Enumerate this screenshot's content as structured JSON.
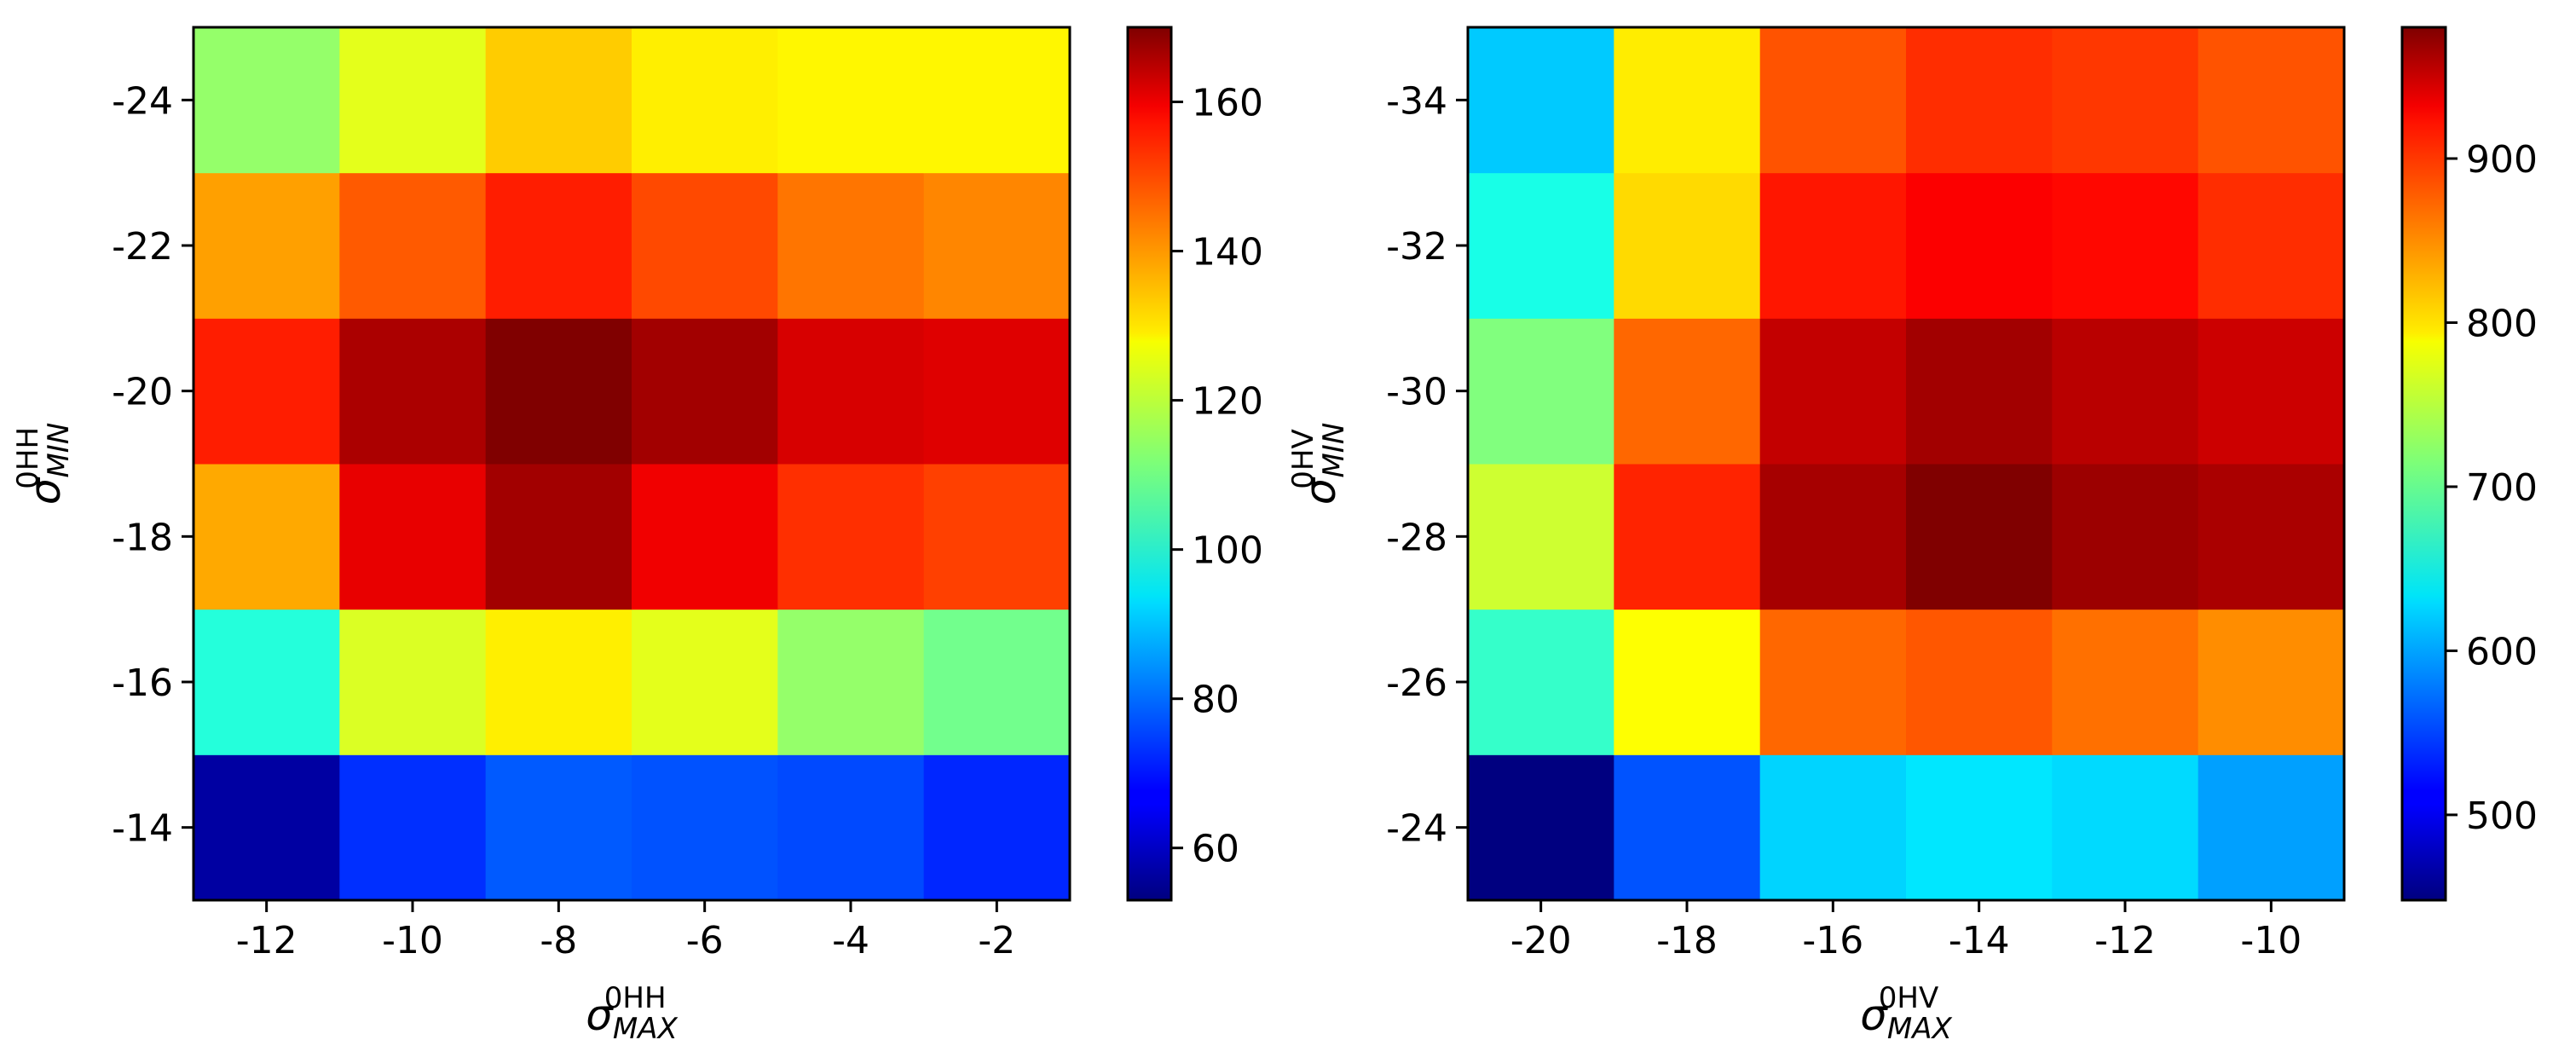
{
  "chart_data": [
    {
      "type": "heatmap",
      "x": [
        -12,
        -10,
        -8,
        -6,
        -4,
        -2
      ],
      "y": [
        -14,
        -16,
        -18,
        -20,
        -22,
        -24
      ],
      "z": [
        [
          57,
          73,
          78,
          77,
          76,
          72
        ],
        [
          101,
          122,
          128,
          123,
          114,
          110
        ],
        [
          136,
          158,
          166,
          157,
          150,
          148
        ],
        [
          152,
          165,
          170,
          166,
          160,
          159
        ],
        [
          137,
          145,
          152,
          147,
          142,
          140
        ],
        [
          114,
          123,
          132,
          128,
          127,
          127
        ]
      ],
      "xlim": [
        -13,
        -1
      ],
      "ylim": [
        -13,
        -25
      ],
      "xticks": [
        "-12",
        "-10",
        "-8",
        "-6",
        "-4",
        "-2"
      ],
      "yticks": [
        "-14",
        "-16",
        "-18",
        "-20",
        "-22",
        "-24"
      ],
      "xlabel": {
        "base": "σ",
        "sup": "0HH",
        "sub": "MAX"
      },
      "ylabel": {
        "base": "σ",
        "sup": "0HH",
        "sub": "MIN"
      },
      "colorbar": {
        "vmin": 53,
        "vmax": 170,
        "ticks": [
          "60",
          "80",
          "100",
          "120",
          "140",
          "160"
        ],
        "colormap": "jet"
      },
      "grid": false
    },
    {
      "type": "heatmap",
      "x": [
        -20,
        -18,
        -16,
        -14,
        -12,
        -10
      ],
      "y": [
        -24,
        -26,
        -28,
        -30,
        -32,
        -34
      ],
      "z": [
        [
          448,
          558,
          625,
          635,
          628,
          598
        ],
        [
          675,
          780,
          860,
          868,
          855,
          840
        ],
        [
          755,
          895,
          960,
          980,
          965,
          958
        ],
        [
          715,
          860,
          945,
          962,
          950,
          940
        ],
        [
          660,
          800,
          902,
          915,
          910,
          890
        ],
        [
          620,
          790,
          870,
          890,
          885,
          870
        ]
      ],
      "xlim": [
        -21,
        -9
      ],
      "ylim": [
        -23,
        -35
      ],
      "xticks": [
        "-20",
        "-18",
        "-16",
        "-14",
        "-12",
        "-10"
      ],
      "yticks": [
        "-24",
        "-26",
        "-28",
        "-30",
        "-32",
        "-34"
      ],
      "xlabel": {
        "base": "σ",
        "sup": "0HV",
        "sub": "MAX"
      },
      "ylabel": {
        "base": "σ",
        "sup": "0HV",
        "sub": "MIN"
      },
      "colorbar": {
        "vmin": 448,
        "vmax": 980,
        "ticks": [
          "500",
          "600",
          "700",
          "800",
          "900"
        ],
        "colormap": "jet"
      },
      "grid": false
    }
  ]
}
